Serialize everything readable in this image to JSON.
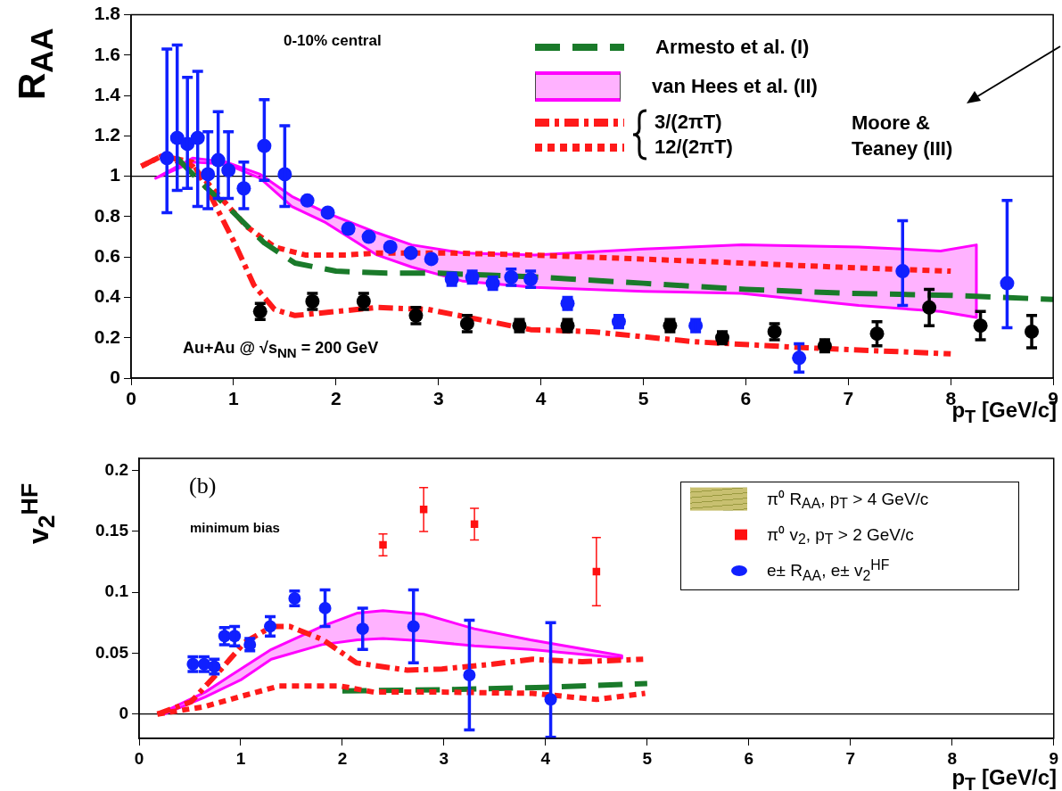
{
  "chart_data": [
    {
      "type": "scatter",
      "xlabel": "p$_{T}$ [GeV/c]",
      "ylabel": "R$_{AA}$",
      "xlim": [
        0,
        9
      ],
      "ylim": [
        0,
        1.8
      ],
      "xticks": [
        0,
        1,
        2,
        3,
        4,
        5,
        6,
        7,
        8,
        9
      ],
      "yticks": [
        0,
        0.2,
        0.4,
        0.6,
        0.8,
        1,
        1.2,
        1.4,
        1.6,
        1.8
      ],
      "legend": "top right",
      "annotations": [
        "0-10% central",
        "Au+Au @ √s$_{NN}$ = 200 GeV",
        "Moore & Teaney (III)"
      ],
      "ref_lines": [
        {
          "axis": "y",
          "value": 1,
          "color": "#000000"
        }
      ],
      "series": [
        {
          "name": "Armesto et al. (I)",
          "type": "line",
          "color": "#1a7a2a",
          "line_style": "dashed",
          "x": [
            0.45,
            0.7,
            1.0,
            1.3,
            1.6,
            2.0,
            2.5,
            3.0,
            3.5,
            4.0,
            5.0,
            6.0,
            7.0,
            8.0,
            9.0
          ],
          "values": [
            1.09,
            0.96,
            0.82,
            0.67,
            0.57,
            0.53,
            0.52,
            0.52,
            0.51,
            0.5,
            0.47,
            0.44,
            0.42,
            0.41,
            0.39
          ]
        },
        {
          "name": "van Hees et al. (II)",
          "type": "line",
          "color": "#ff00ff",
          "x": [
            0.24,
            0.6,
            0.93,
            1.26,
            1.57,
            1.9,
            2.4,
            2.74,
            3.24,
            3.94,
            5.0,
            5.96,
            7.1,
            7.9,
            8.25
          ],
          "values": [
            null,
            null,
            null,
            null,
            null,
            null,
            null,
            null,
            null,
            null,
            null,
            null,
            null,
            null,
            null
          ],
          "upper": [
            0.99,
            1.09,
            1.07,
            1.01,
            0.9,
            0.82,
            0.72,
            0.66,
            0.62,
            0.61,
            0.64,
            0.66,
            0.65,
            0.63,
            0.66
          ],
          "lower": [
            0.99,
            1.07,
            1.06,
            0.99,
            0.85,
            0.77,
            0.61,
            0.55,
            0.48,
            0.45,
            0.43,
            0.42,
            0.36,
            0.33,
            0.3
          ]
        },
        {
          "name": "3/(2πT)",
          "type": "line",
          "color": "#ff1a1a",
          "line_style": "dashdot",
          "x": [
            0.1,
            0.3,
            0.6,
            0.8,
            1.0,
            1.2,
            1.4,
            1.6,
            2.0,
            2.4,
            2.9,
            3.4,
            3.9,
            4.5,
            5.5,
            6.6,
            8.0
          ],
          "values": [
            1.05,
            1.1,
            1.07,
            0.88,
            0.68,
            0.46,
            0.34,
            0.31,
            0.33,
            0.35,
            0.34,
            0.29,
            0.24,
            0.23,
            0.18,
            0.15,
            0.12
          ]
        },
        {
          "name": "12/(2πT)",
          "type": "line",
          "color": "#ff1a1a",
          "line_style": "dotted",
          "x": [
            0.1,
            0.3,
            0.6,
            0.9,
            1.13,
            1.4,
            1.7,
            2.1,
            2.4,
            3.1,
            3.9,
            5.5,
            6.9,
            8.0
          ],
          "values": [
            1.05,
            1.1,
            1.05,
            0.88,
            0.75,
            0.65,
            0.61,
            0.61,
            0.62,
            0.62,
            0.61,
            0.58,
            0.55,
            0.53
          ]
        },
        {
          "type": "scatter",
          "color": "#000000",
          "marker": "circle",
          "x": [
            1.26,
            1.77,
            2.27,
            2.78,
            3.28,
            3.79,
            4.26,
            5.26,
            5.77,
            6.28,
            6.77,
            7.28,
            7.79,
            8.29,
            8.79
          ],
          "values": [
            0.33,
            0.38,
            0.38,
            0.31,
            0.27,
            0.26,
            0.26,
            0.26,
            0.2,
            0.23,
            0.16,
            0.22,
            0.35,
            0.26,
            0.23
          ],
          "errors": [
            0.04,
            0.04,
            0.04,
            0.04,
            0.04,
            0.03,
            0.03,
            0.03,
            0.03,
            0.04,
            0.03,
            0.06,
            0.09,
            0.07,
            0.08
          ]
        },
        {
          "type": "scatter",
          "color": "#1020ff",
          "marker": "circle",
          "x": [
            0.35,
            0.45,
            0.55,
            0.65,
            0.75,
            0.85,
            0.95,
            1.1,
            1.3,
            1.5,
            1.72,
            1.92,
            2.12,
            2.32,
            2.53,
            2.73,
            2.93,
            3.13,
            3.33,
            3.53,
            3.71,
            3.9,
            4.26,
            4.76,
            5.51,
            6.52,
            7.53,
            8.55
          ],
          "values": [
            1.09,
            1.19,
            1.16,
            1.19,
            1.01,
            1.08,
            1.03,
            0.94,
            1.15,
            1.01,
            0.88,
            0.82,
            0.74,
            0.7,
            0.65,
            0.62,
            0.59,
            0.49,
            0.5,
            0.47,
            0.5,
            0.49,
            0.37,
            0.28,
            0.26,
            0.1,
            0.53,
            0.47
          ],
          "errors": [
            [
              0.82,
              1.63
            ],
            [
              0.93,
              1.65
            ],
            [
              0.94,
              1.49
            ],
            [
              0.85,
              1.52
            ],
            [
              0.84,
              1.22
            ],
            [
              0.89,
              1.32
            ],
            [
              0.89,
              1.22
            ],
            [
              0.84,
              1.07
            ],
            [
              0.98,
              1.38
            ],
            [
              0.85,
              1.25
            ],
            null,
            null,
            null,
            null,
            null,
            null,
            null,
            0.03,
            0.03,
            0.03,
            0.04,
            0.04,
            0.03,
            0.03,
            0.03,
            0.07,
            [
              0.36,
              0.78
            ],
            [
              0.25,
              0.88
            ]
          ]
        }
      ]
    },
    {
      "type": "scatter",
      "xlabel": "p$_{T}$ [GeV/c]",
      "ylabel": "v$_{2}$$^{HF}$",
      "xlim": [
        0,
        9
      ],
      "ylim": [
        -0.02,
        0.21
      ],
      "xticks": [
        0,
        1,
        2,
        3,
        4,
        5,
        6,
        7,
        8,
        9
      ],
      "yticks": [
        0,
        0.05,
        0.1,
        0.15,
        0.2
      ],
      "legend": "top right",
      "annotations": [
        "(b)",
        "minimum bias"
      ],
      "ref_lines": [
        {
          "axis": "y",
          "value": 0,
          "color": "#000000"
        }
      ],
      "series": [
        {
          "name": "π⁰ R$_{AA}$, p$_{T}$ > 4 GeV/c",
          "type": "area",
          "color": "#c8c070"
        },
        {
          "name": "π⁰ v$_{2}$, p$_{T}$ > 2 GeV/c",
          "type": "scatter",
          "color": "#ff1010",
          "marker": "square",
          "x": [
            2.4,
            2.8,
            3.3,
            4.5
          ],
          "values": [
            0.139,
            0.168,
            0.156,
            0.117
          ],
          "errors": [
            0.009,
            0.018,
            0.013,
            0.028
          ]
        },
        {
          "name": "e± R$_{AA}$, e± v$_{2}$$^{HF}$",
          "type": "scatter",
          "color": "#1020ff",
          "marker": "circle",
          "x": [
            0.53,
            0.64,
            0.74,
            0.84,
            0.94,
            1.09,
            1.29,
            1.53,
            1.83,
            2.2,
            2.7,
            3.25,
            4.05
          ],
          "values": [
            0.041,
            0.041,
            0.039,
            0.064,
            0.064,
            0.057,
            0.072,
            0.095,
            0.087,
            0.07,
            0.072,
            0.032,
            0.012
          ],
          "errors": [
            0.006,
            0.006,
            0.006,
            0.007,
            0.008,
            0.005,
            0.008,
            0.006,
            0.015,
            0.017,
            0.03,
            0.045,
            [
              -0.019,
              0.075
            ]
          ]
        },
        {
          "type": "line",
          "color": "#ff00ff",
          "x": [
            0.25,
            0.65,
            1.0,
            1.3,
            1.8,
            2.15,
            2.4,
            2.8,
            3.3,
            3.85,
            4.75
          ],
          "values": [
            null,
            null,
            null,
            null,
            null,
            null,
            null,
            null,
            null,
            null,
            null
          ],
          "upper": [
            0.002,
            0.018,
            0.037,
            0.053,
            0.072,
            0.083,
            0.085,
            0.082,
            0.07,
            0.061,
            0.048
          ],
          "lower": [
            0,
            0.014,
            0.028,
            0.045,
            0.057,
            0.061,
            0.062,
            0.06,
            0.056,
            0.053,
            0.046
          ]
        },
        {
          "type": "line",
          "color": "#ff1a1a",
          "line_style": "dashdot",
          "x": [
            0.18,
            0.51,
            0.81,
            1.04,
            1.31,
            1.48,
            1.81,
            2.14,
            2.64,
            2.98,
            3.48,
            3.87,
            4.36,
            4.96
          ],
          "values": [
            0,
            0.01,
            0.037,
            0.059,
            0.072,
            0.072,
            0.061,
            0.042,
            0.036,
            0.037,
            0.041,
            0.045,
            0.043,
            0.045
          ]
        },
        {
          "type": "line",
          "color": "#ff1a1a",
          "line_style": "dotted",
          "x": [
            0.18,
            0.64,
            0.98,
            1.38,
            1.98,
            2.31,
            2.98,
            3.87,
            4.5,
            4.98
          ],
          "values": [
            0,
            0.006,
            0.014,
            0.023,
            0.023,
            0.018,
            0.018,
            0.017,
            0.012,
            0.017
          ]
        },
        {
          "type": "line",
          "color": "#1a7a2a",
          "line_style": "dashed",
          "x": [
            2.0,
            3.0,
            4.0,
            5.0
          ],
          "values": [
            0.019,
            0.02,
            0.022,
            0.025
          ]
        }
      ]
    }
  ]
}
